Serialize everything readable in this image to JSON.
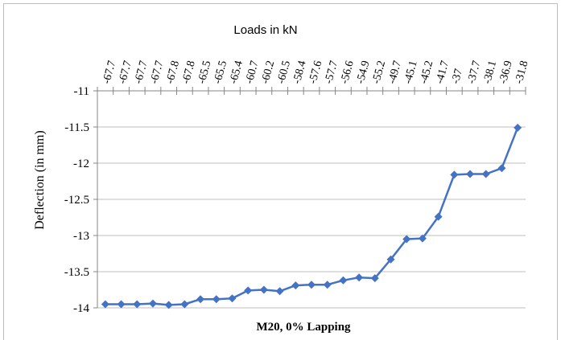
{
  "chart_data": {
    "type": "line",
    "xlabel_top": "Loads in kN",
    "xlabel_bottom": "M20, 0% Lapping",
    "ylabel": "Deflection (in mm)",
    "x_axis_position": "top",
    "categories": [
      "-67.7",
      "-67.7",
      "-67.7",
      "-67.7",
      "-67.8",
      "-67.8",
      "-65.5",
      "-65.5",
      "-65.4",
      "-60.7",
      "-60.2",
      "-60.5",
      "-58.4",
      "-57.6",
      "-57.7",
      "-56.6",
      "-54.9",
      "-55.2",
      "-49.7",
      "-45.1",
      "-45.2",
      "-41.7",
      "-37",
      "-37.7",
      "-38.1",
      "-36.9",
      "-31.8"
    ],
    "values": [
      -13.95,
      -13.95,
      -13.95,
      -13.94,
      -13.96,
      -13.95,
      -13.88,
      -13.88,
      -13.87,
      -13.76,
      -13.75,
      -13.77,
      -13.69,
      -13.68,
      -13.68,
      -13.62,
      -13.58,
      -13.59,
      -13.33,
      -13.05,
      -13.04,
      -12.74,
      -12.16,
      -12.15,
      -12.15,
      -12.07,
      -11.51
    ],
    "yticks": [
      "-11",
      "-11.5",
      "-12",
      "-12.5",
      "-13",
      "-13.5",
      "-14"
    ],
    "ylim": [
      -14,
      -11
    ],
    "grid": true,
    "colors": {
      "line": "#4472C4",
      "marker": "#4472C4",
      "grid": "#bfbfbf"
    }
  }
}
